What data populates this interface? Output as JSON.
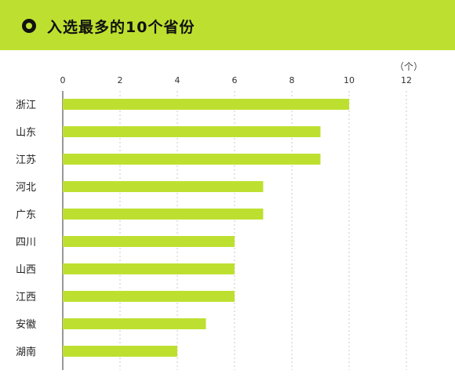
{
  "header": {
    "title": "入选最多的10个省份",
    "icon": "target-circle-icon",
    "bg_color": "#bde030"
  },
  "chart_data": {
    "type": "bar",
    "orientation": "horizontal",
    "title": "入选最多的10个省份",
    "unit_label": "（个）",
    "categories": [
      "浙江",
      "山东",
      "江苏",
      "河北",
      "广东",
      "四川",
      "山西",
      "江西",
      "安徽",
      "湖南"
    ],
    "values": [
      10,
      9,
      9,
      7,
      7,
      6,
      6,
      6,
      5,
      4
    ],
    "xlim": [
      0,
      12
    ],
    "xticks": [
      0,
      2,
      4,
      6,
      8,
      10,
      12
    ],
    "grid": "vertical-dashed",
    "bar_color": "#bde030"
  }
}
